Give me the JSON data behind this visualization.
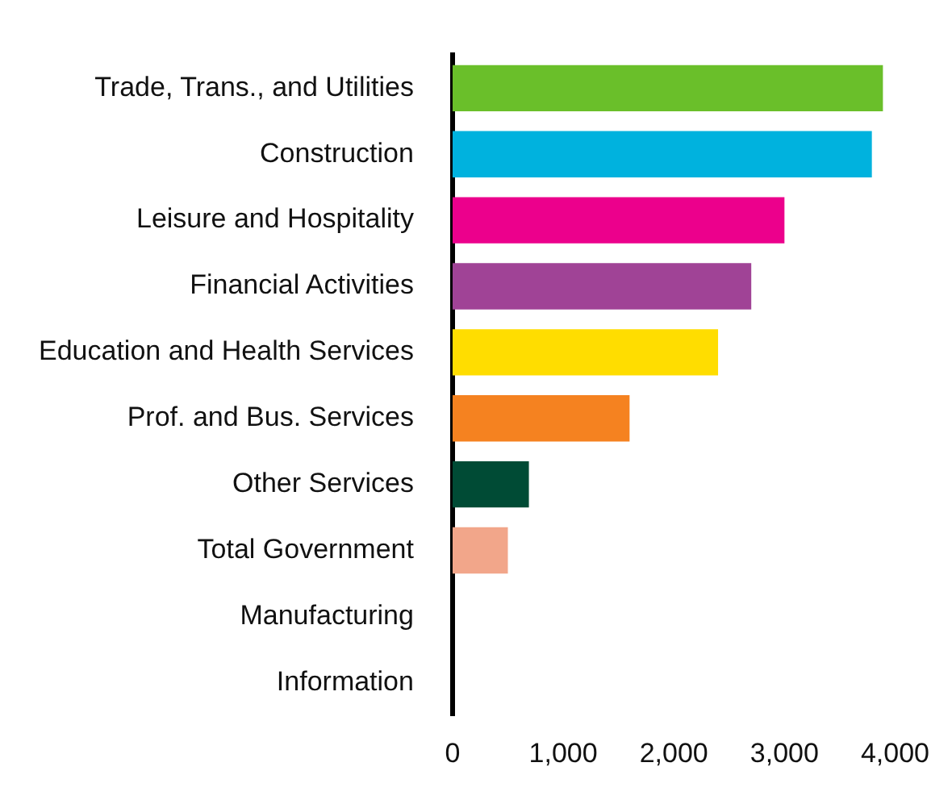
{
  "chart_data": {
    "type": "bar",
    "orientation": "horizontal",
    "categories": [
      "Trade, Trans., and Utilities",
      "Construction",
      "Leisure and Hospitality",
      "Financial Activities",
      "Education and Health Services",
      "Prof. and Bus. Services",
      "Other Services",
      "Total Government",
      "Manufacturing",
      "Information"
    ],
    "values": [
      3890,
      3790,
      3000,
      2700,
      2400,
      1600,
      690,
      500,
      0,
      0
    ],
    "colors": [
      "#6abf2a",
      "#00b2de",
      "#ec008c",
      "#a04396",
      "#ffdd00",
      "#f58220",
      "#004b35",
      "#f2a68a",
      "#999999",
      "#999999"
    ],
    "xlim": [
      0,
      4000
    ],
    "xticks": [
      0,
      {
        "value": 1000,
        "label": "1,000"
      },
      {
        "value": 2000,
        "label": "2,000"
      },
      {
        "value": 3000,
        "label": "3,000"
      },
      {
        "value": 4000,
        "label": "4,000"
      }
    ],
    "grid": false,
    "legend": false
  }
}
